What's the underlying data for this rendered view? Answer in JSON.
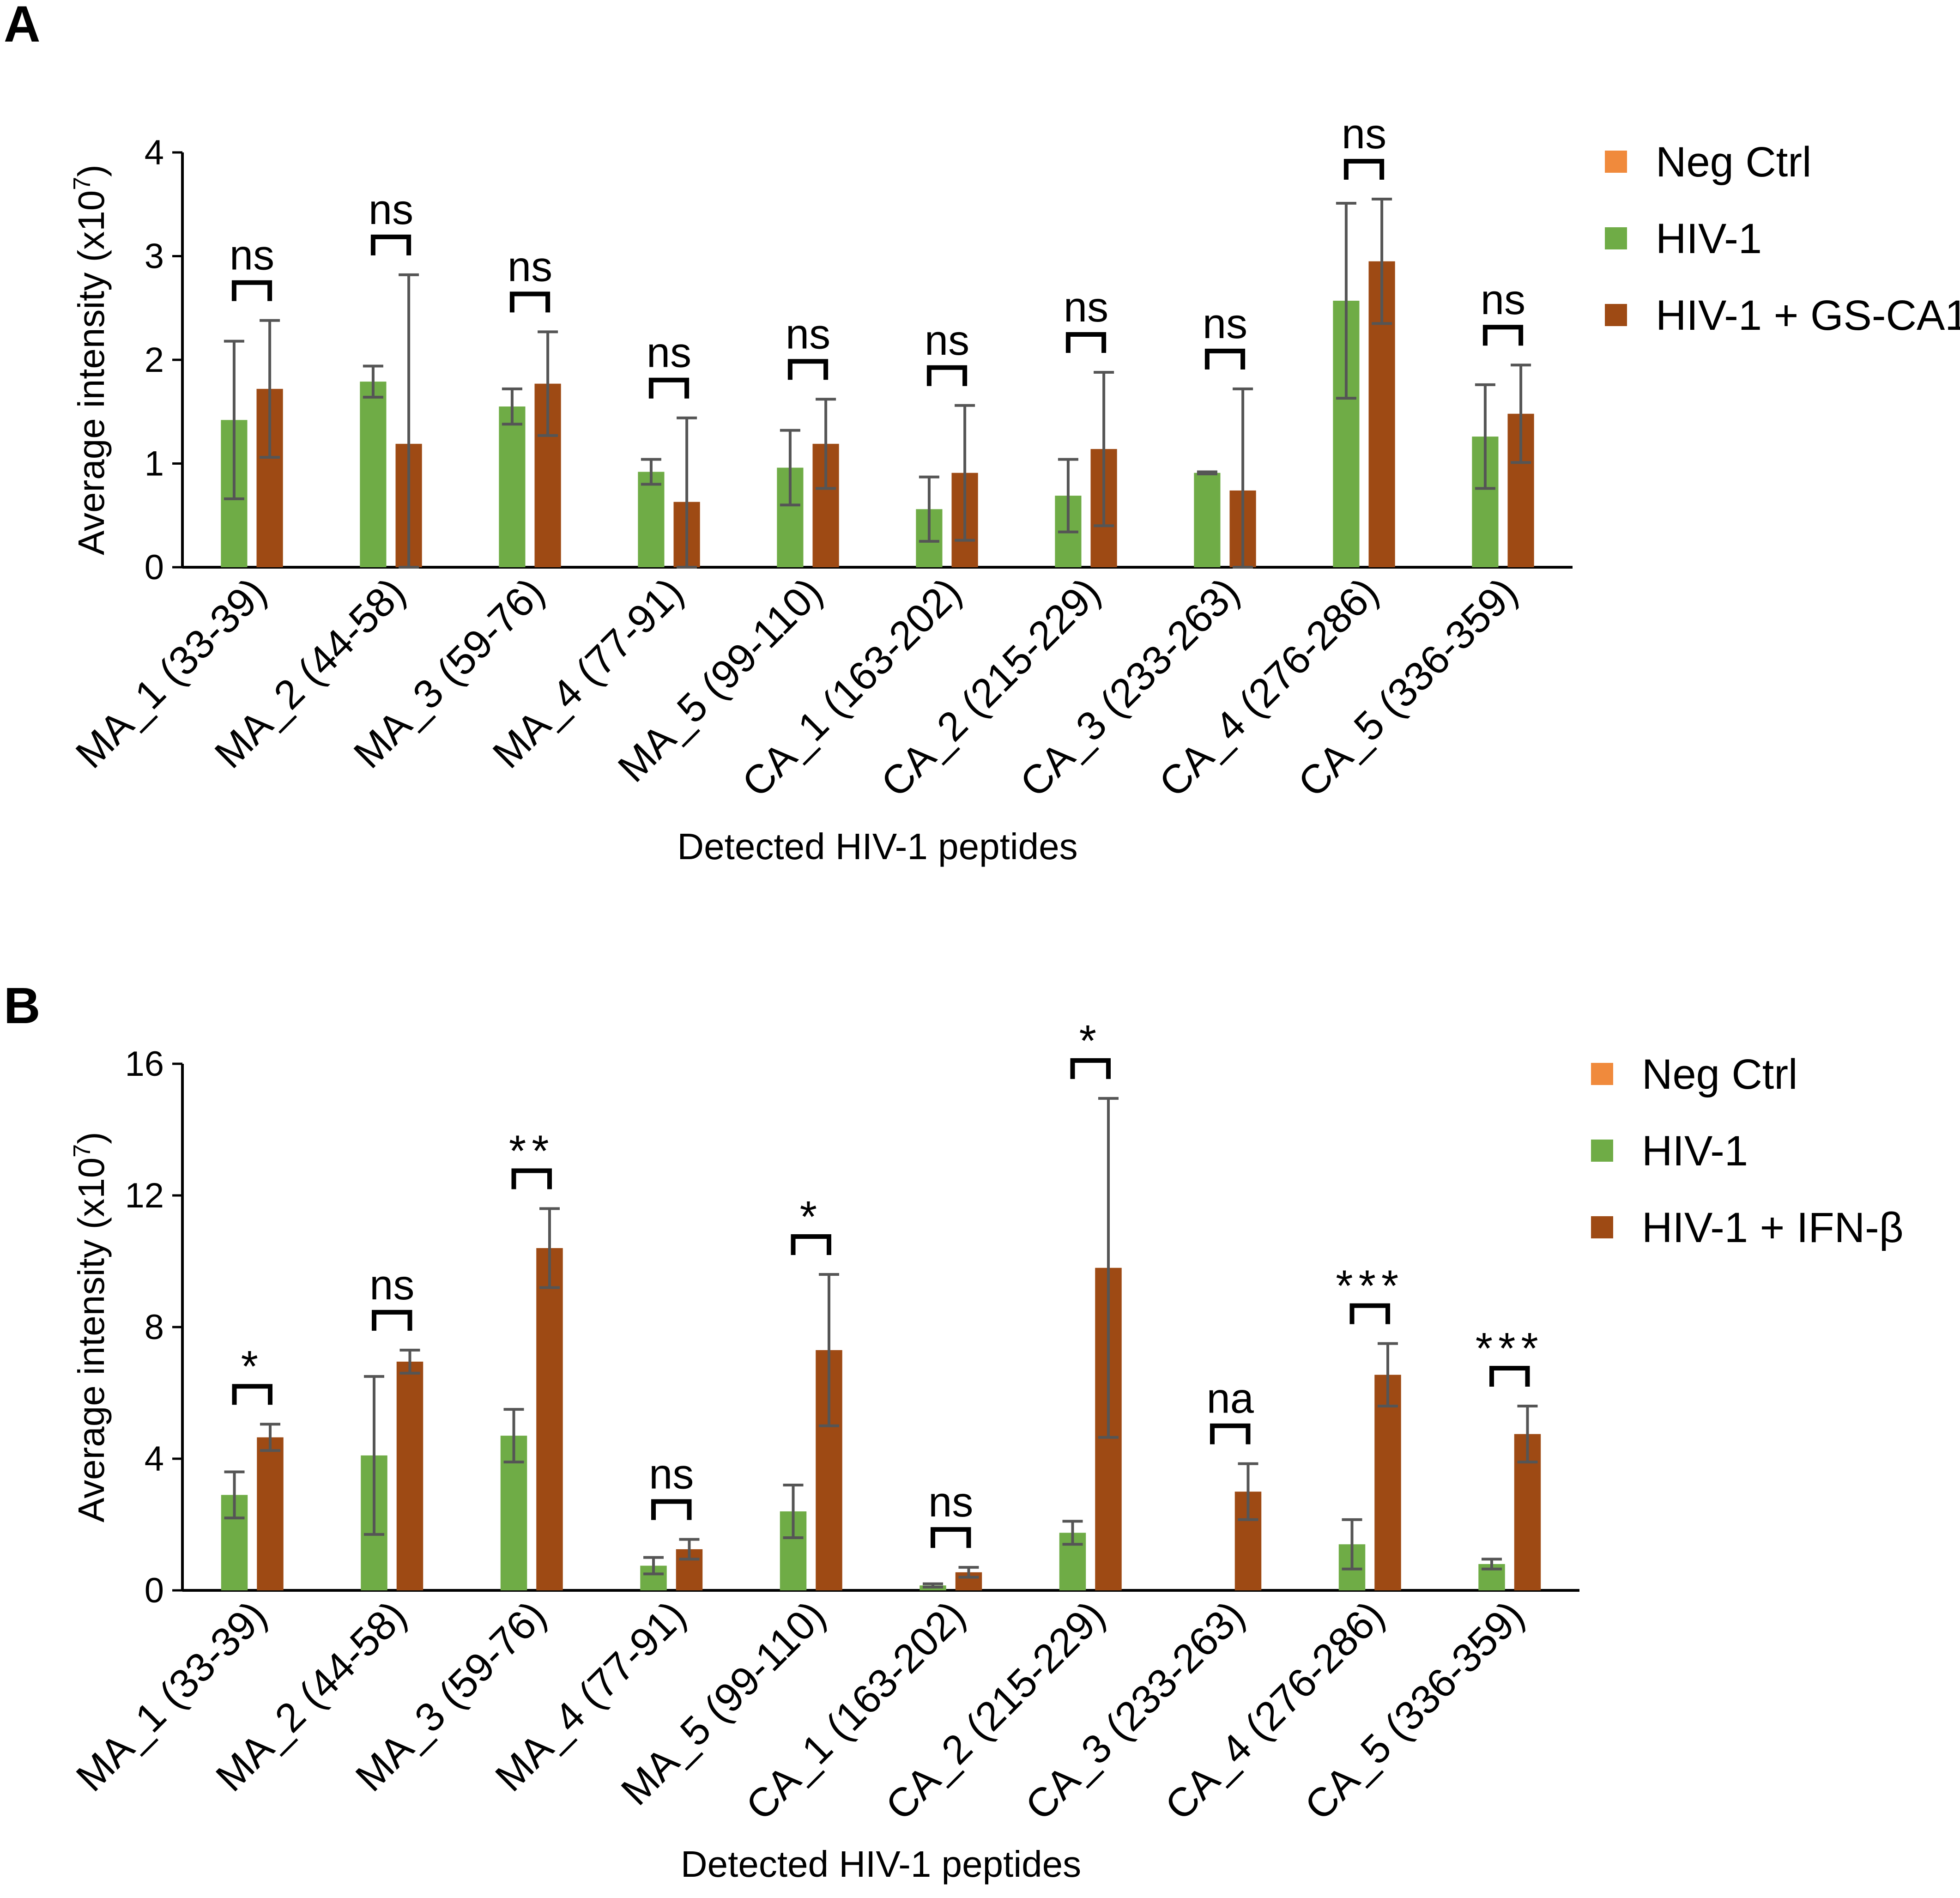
{
  "panel_labels": [
    "A",
    "B"
  ],
  "colors": {
    "neg_ctrl": "#f08a3c",
    "hiv1": "#6fac46",
    "treated": "#9e4a14",
    "error": "#555555"
  },
  "chart_data": [
    {
      "type": "bar",
      "panel": "A",
      "categories": [
        "MA_1 (33-39)",
        "MA_2 (44-58)",
        "MA_3 (59-76)",
        "MA_4 (77-91)",
        "MA_5 (99-110)",
        "CA_1 (163-202)",
        "CA_2 (215-229)",
        "CA_3 (233-263)",
        "CA_4 (276-286)",
        "CA_5 (336-359)"
      ],
      "ylabel": "Average intensity (x10",
      "ylabel_sup": "7",
      "ylabel_close": ")",
      "xlabel": "Detected HIV-1 peptides",
      "ylim": [
        0,
        4
      ],
      "yticks": [
        "0",
        "1",
        "2",
        "3",
        "4"
      ],
      "legend": [
        "Neg Ctrl",
        "HIV-1",
        "HIV-1 + GS-CA1"
      ],
      "series": [
        {
          "name": "Neg Ctrl",
          "values": [
            0,
            0,
            0,
            0,
            0,
            0,
            0,
            0,
            0,
            0
          ],
          "errors": [
            0,
            0,
            0,
            0,
            0,
            0,
            0,
            0,
            0,
            0
          ]
        },
        {
          "name": "HIV-1",
          "values": [
            1.42,
            1.79,
            1.55,
            0.92,
            0.96,
            0.56,
            0.69,
            0.91,
            2.57,
            1.26
          ],
          "errors": [
            0.76,
            0.15,
            0.17,
            0.12,
            0.36,
            0.31,
            0.35,
            0.01,
            0.94,
            0.5
          ]
        },
        {
          "name": "HIV-1 + GS-CA1",
          "values": [
            1.72,
            1.19,
            1.77,
            0.63,
            1.19,
            0.91,
            1.14,
            0.74,
            2.95,
            1.48
          ],
          "errors": [
            0.66,
            1.63,
            0.5,
            0.81,
            0.43,
            0.65,
            0.74,
            0.98,
            0.6,
            0.47
          ]
        }
      ],
      "significance": [
        "ns",
        "ns",
        "ns",
        "ns",
        "ns",
        "ns",
        "ns",
        "ns",
        "ns",
        "ns"
      ]
    },
    {
      "type": "bar",
      "panel": "B",
      "categories": [
        "MA_1 (33-39)",
        "MA_2 (44-58)",
        "MA_3 (59-76)",
        "MA_4 (77-91)",
        "MA_5 (99-110)",
        "CA_1 (163-202)",
        "CA_2 (215-229)",
        "CA_3 (233-263)",
        "CA_4 (276-286)",
        "CA_5 (336-359)"
      ],
      "ylabel": "Average intensity (x10",
      "ylabel_sup": "7",
      "ylabel_close": ")",
      "xlabel": "Detected HIV-1 peptides",
      "ylim": [
        0,
        16
      ],
      "yticks": [
        "0",
        "4",
        "8",
        "12",
        "16"
      ],
      "legend": [
        "Neg Ctrl",
        "HIV-1",
        "HIV-1 + IFN-β"
      ],
      "series": [
        {
          "name": "Neg Ctrl",
          "values": [
            0,
            0,
            0,
            0,
            0,
            0,
            0,
            0,
            0,
            0
          ],
          "errors": [
            0,
            0,
            0,
            0,
            0,
            0,
            0,
            0,
            0,
            0
          ]
        },
        {
          "name": "HIV-1",
          "values": [
            2.9,
            4.1,
            4.7,
            0.75,
            2.4,
            0.15,
            1.75,
            0,
            1.4,
            0.8
          ],
          "errors": [
            0.7,
            2.4,
            0.8,
            0.25,
            0.8,
            0.05,
            0.35,
            0,
            0.75,
            0.15
          ]
        },
        {
          "name": "HIV-1 + IFN-β",
          "values": [
            4.65,
            6.95,
            10.4,
            1.25,
            7.3,
            0.55,
            9.8,
            3.0,
            6.55,
            4.75
          ],
          "errors": [
            0.4,
            0.35,
            1.2,
            0.3,
            2.3,
            0.15,
            5.15,
            0.85,
            0.95,
            0.85
          ]
        }
      ],
      "significance": [
        "*",
        "ns",
        "**",
        "ns",
        "*",
        "ns",
        "*",
        "na",
        "***",
        "***"
      ]
    }
  ]
}
